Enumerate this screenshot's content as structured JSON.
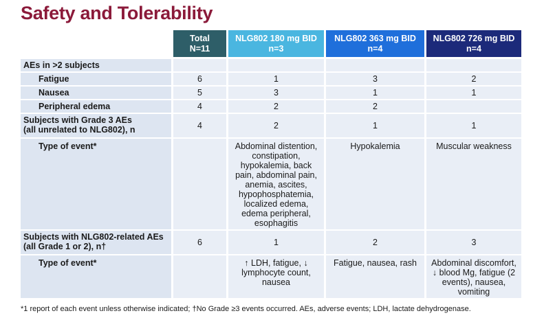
{
  "title": "Safety and Tolerability",
  "columns": [
    {
      "line1": "Total",
      "line2": "N=11"
    },
    {
      "line1": "NLG802 180 mg BID",
      "line2": "n=3"
    },
    {
      "line1": "NLG802 363 mg BID",
      "line2": "n=4"
    },
    {
      "line1": "NLG802 726 mg BID",
      "line2": "n=4"
    }
  ],
  "rows": {
    "aes_gt2": {
      "label": "AEs in >2 subjects",
      "values": [
        "",
        "",
        "",
        ""
      ]
    },
    "fatigue": {
      "label": "Fatigue",
      "values": [
        "6",
        "1",
        "3",
        "2"
      ]
    },
    "nausea": {
      "label": "Nausea",
      "values": [
        "5",
        "3",
        "1",
        "1"
      ]
    },
    "edema": {
      "label": "Peripheral edema",
      "values": [
        "4",
        "2",
        "2",
        ""
      ]
    },
    "grade3": {
      "label_line1": "Subjects with Grade 3 AEs",
      "label_line2": "(all unrelated to NLG802), n",
      "values": [
        "4",
        "2",
        "1",
        "1"
      ]
    },
    "grade3_type": {
      "label": "Type of event*",
      "values": [
        "",
        "Abdominal distention, constipation, hypokalemia, back pain, abdominal pain, anemia, ascites, hypophosphatemia, localized edema, edema peripheral, esophagitis",
        "Hypokalemia",
        "Muscular weakness"
      ]
    },
    "related": {
      "label_line1": "Subjects with NLG802-related AEs",
      "label_line2": "(all Grade 1 or 2), n†",
      "values": [
        "6",
        "1",
        "2",
        "3"
      ]
    },
    "related_type": {
      "label": "Type of event*",
      "values": [
        "",
        "↑ LDH, fatigue, ↓ lymphocyte count, nausea",
        "Fatigue, nausea, rash",
        "Abdominal discomfort, ↓ blood Mg, fatigue (2 events), nausea, vomiting"
      ]
    }
  },
  "footnote": "*1 report of each event unless otherwise indicated; †No Grade ≥3 events occurred. AEs, adverse events; LDH, lactate dehydrogenase."
}
